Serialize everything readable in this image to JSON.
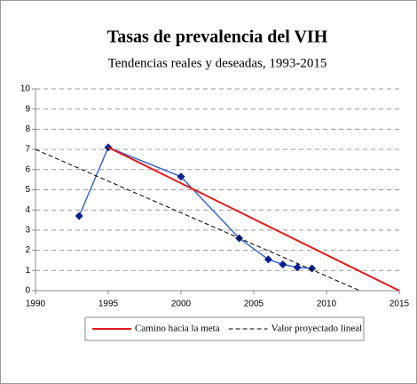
{
  "chart_data": {
    "type": "line",
    "title": "Tasas de prevalencia del VIH",
    "subtitle": "Tendencias reales y deseadas, 1993-2015",
    "xlim": [
      1990,
      2015
    ],
    "xticks": [
      1990,
      1995,
      2000,
      2005,
      2010,
      2015
    ],
    "ylim": [
      0,
      10
    ],
    "yticks": [
      0,
      1,
      2,
      3,
      4,
      5,
      6,
      7,
      8,
      9,
      10
    ],
    "grid": true,
    "legend": "bottom",
    "series": [
      {
        "color": "#3a66d4",
        "marker": "diamond",
        "marker_color": "#0b1f8c",
        "x": [
          1993,
          1995,
          2000,
          2004,
          2006,
          2007,
          2008,
          2009
        ],
        "values": [
          3.7,
          7.1,
          5.65,
          2.6,
          1.55,
          1.3,
          1.15,
          1.1
        ]
      },
      {
        "name": "Camino hacia la meta",
        "color": "#e31a1c",
        "x": [
          1995,
          2015
        ],
        "values": [
          7.1,
          0
        ]
      },
      {
        "name": "Valor proyectado lineal",
        "color": "#000000",
        "dashed": true,
        "x": [
          1990,
          2012.3
        ],
        "values": [
          7,
          0
        ]
      }
    ]
  }
}
